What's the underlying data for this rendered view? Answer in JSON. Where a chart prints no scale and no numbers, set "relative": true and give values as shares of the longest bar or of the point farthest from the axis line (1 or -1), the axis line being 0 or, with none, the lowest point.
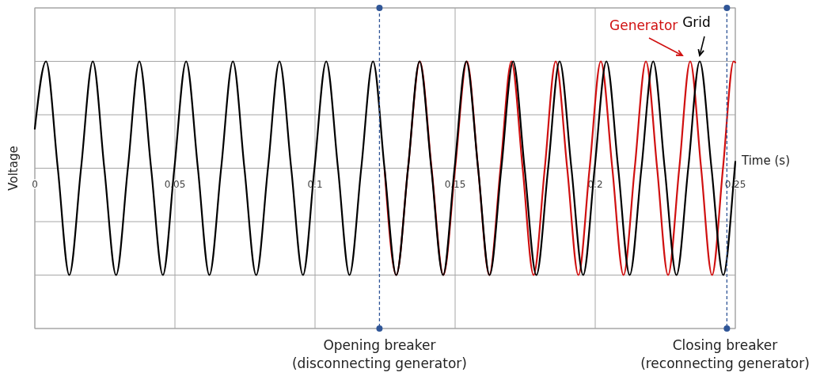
{
  "chart_data": {
    "type": "line",
    "xlabel": "Time (s)",
    "ylabel": "Voltage",
    "xlim": [
      0,
      0.25
    ],
    "xticks": [
      0,
      0.05,
      0.1,
      0.15,
      0.2,
      0.25
    ],
    "relative": true,
    "grid": true,
    "series": [
      {
        "name": "Generator",
        "color": "#d01010",
        "x": [
          0.1248,
          0.129,
          0.1332,
          0.1374,
          0.1416,
          0.1458,
          0.15,
          0.1542,
          0.1582,
          0.1622,
          0.1662,
          0.1701,
          0.1741,
          0.178,
          0.182,
          0.1859,
          0.19,
          0.194,
          0.198,
          0.202,
          0.2061,
          0.2101,
          0.2141,
          0.2181,
          0.2221,
          0.226,
          0.23,
          0.2339,
          0.2378,
          0.2417,
          0.2456,
          0.2494,
          0.25
        ],
        "values": [
          0,
          -1,
          0,
          1,
          0,
          -1,
          0,
          1,
          0,
          -1,
          0,
          1,
          0,
          -1,
          0,
          1,
          0,
          -1,
          0,
          1,
          0,
          -1,
          0,
          1,
          0,
          -1,
          0,
          1,
          0,
          -1,
          0,
          1,
          0.99
        ]
      },
      {
        "name": "Grid",
        "color": "#000000",
        "x": [
          0,
          0.004,
          0.0082,
          0.0123,
          0.0165,
          0.0207,
          0.0248,
          0.029,
          0.0332,
          0.0373,
          0.0415,
          0.0457,
          0.0498,
          0.054,
          0.0582,
          0.0623,
          0.0665,
          0.0707,
          0.0748,
          0.079,
          0.0832,
          0.0873,
          0.0915,
          0.0957,
          0.0998,
          0.104,
          0.1082,
          0.1123,
          0.1165,
          0.1207,
          0.1248,
          0.129,
          0.1332,
          0.1373,
          0.1415,
          0.1457,
          0.1498,
          0.154,
          0.1582,
          0.1623,
          0.1665,
          0.1707,
          0.1748,
          0.179,
          0.1832,
          0.1873,
          0.1915,
          0.1957,
          0.1998,
          0.204,
          0.2082,
          0.2123,
          0.2165,
          0.2207,
          0.2248,
          0.229,
          0.2332,
          0.2373,
          0.2415,
          0.2457,
          0.2498,
          0.25
        ],
        "values": [
          0.37,
          1,
          0,
          -1,
          0,
          1,
          0,
          -1,
          0,
          1,
          0,
          -1,
          0,
          1,
          0,
          -1,
          0,
          1,
          0,
          -1,
          0,
          1,
          0,
          -1,
          0,
          1,
          0,
          -1,
          0,
          1,
          0,
          -1,
          0,
          1,
          0,
          -1,
          0,
          1,
          0,
          -1,
          0,
          1,
          0,
          -1,
          0,
          1,
          0,
          -1,
          0,
          1,
          0,
          -1,
          0,
          1,
          0,
          -1,
          0,
          1,
          0,
          -1,
          0,
          0.06
        ]
      }
    ],
    "ref_lines": [
      {
        "axis": "x",
        "value": 0.123,
        "label": "Opening breaker\n(disconnecting generator)",
        "color": "#2f5597",
        "line_style": "dashed"
      },
      {
        "axis": "x",
        "value": 0.247,
        "label": "Closing breaker\n(reconnecting generator)",
        "color": "#2f5597",
        "line_style": "dashed"
      }
    ]
  }
}
